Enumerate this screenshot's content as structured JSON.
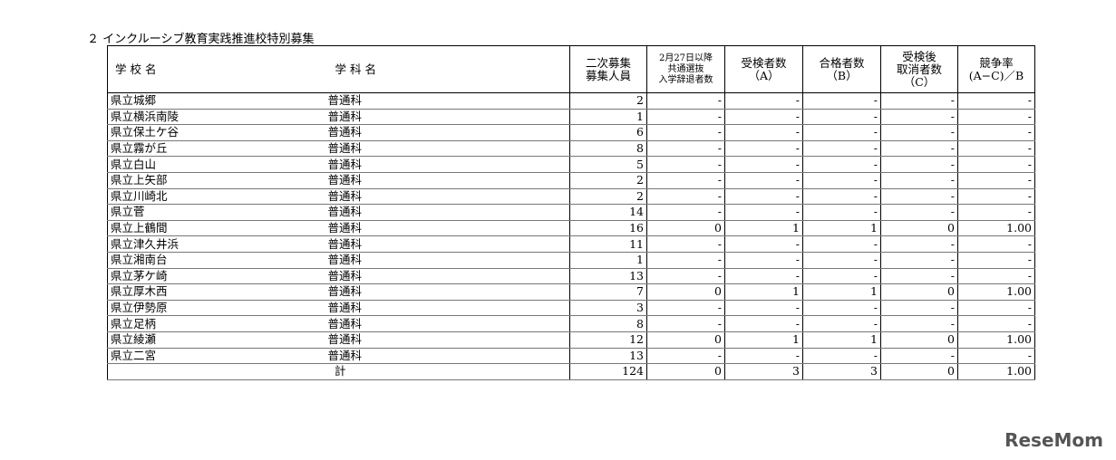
{
  "section_title": "２ インクルーシブ教育実践推進校特別募集",
  "table": {
    "header": [
      [
        "学 校 名"
      ],
      [
        "学 科 名"
      ],
      [
        "二次募集",
        "募集人員"
      ],
      [
        "2月27日以降",
        "共通選抜",
        "入学辞退者数"
      ],
      [
        "受検者数",
        "（A）"
      ],
      [
        "合格者数",
        "（B）"
      ],
      [
        "受検後",
        "取消者数",
        "（C）"
      ],
      [
        "競争率",
        "(A−C)／B"
      ]
    ],
    "rows": [
      [
        "県立城郷",
        "普通科",
        "2",
        "-",
        "-",
        "-",
        "-",
        "-"
      ],
      [
        "県立横浜南陵",
        "普通科",
        "1",
        "-",
        "-",
        "-",
        "-",
        "-"
      ],
      [
        "県立保土ケ谷",
        "普通科",
        "6",
        "-",
        "-",
        "-",
        "-",
        "-"
      ],
      [
        "県立霧が丘",
        "普通科",
        "8",
        "-",
        "-",
        "-",
        "-",
        "-"
      ],
      [
        "県立白山",
        "普通科",
        "5",
        "-",
        "-",
        "-",
        "-",
        "-"
      ],
      [
        "県立上矢部",
        "普通科",
        "2",
        "-",
        "-",
        "-",
        "-",
        "-"
      ],
      [
        "県立川崎北",
        "普通科",
        "2",
        "-",
        "-",
        "-",
        "-",
        "-"
      ],
      [
        "県立菅",
        "普通科",
        "14",
        "-",
        "-",
        "-",
        "-",
        "-"
      ],
      [
        "県立上鶴間",
        "普通科",
        "16",
        "0",
        "1",
        "1",
        "0",
        "1.00"
      ],
      [
        "県立津久井浜",
        "普通科",
        "11",
        "-",
        "-",
        "-",
        "-",
        "-"
      ],
      [
        "県立湘南台",
        "普通科",
        "1",
        "-",
        "-",
        "-",
        "-",
        "-"
      ],
      [
        "県立茅ケ崎",
        "普通科",
        "13",
        "-",
        "-",
        "-",
        "-",
        "-"
      ],
      [
        "県立厚木西",
        "普通科",
        "7",
        "0",
        "1",
        "1",
        "0",
        "1.00"
      ],
      [
        "県立伊勢原",
        "普通科",
        "3",
        "-",
        "-",
        "-",
        "-",
        "-"
      ],
      [
        "県立足柄",
        "普通科",
        "8",
        "-",
        "-",
        "-",
        "-",
        "-"
      ],
      [
        "県立綾瀬",
        "普通科",
        "12",
        "0",
        "1",
        "1",
        "0",
        "1.00"
      ],
      [
        "県立二宮",
        "普通科",
        "13",
        "-",
        "-",
        "-",
        "-",
        "-"
      ]
    ],
    "total": [
      "計",
      "124",
      "0",
      "3",
      "3",
      "0",
      "1.00"
    ]
  },
  "watermark": "ReseMom"
}
